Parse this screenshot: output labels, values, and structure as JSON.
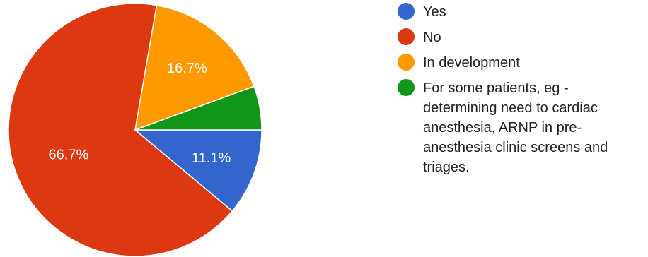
{
  "chart_data": {
    "type": "pie",
    "slices": [
      {
        "label": "Yes",
        "value": 11.1,
        "display": "11.1%",
        "color": "#3366cc"
      },
      {
        "label": "No",
        "value": 66.7,
        "display": "66.7%",
        "color": "#dc3912"
      },
      {
        "label": "In development",
        "value": 16.7,
        "display": "16.7%",
        "color": "#ff9900"
      },
      {
        "label": "For some patients, eg - determining need to cardiac anesthesia, ARNP in pre-anesthesia clinic screens and triages.",
        "value": 5.6,
        "display": "",
        "color": "#109618"
      }
    ],
    "legend_position": "right"
  }
}
